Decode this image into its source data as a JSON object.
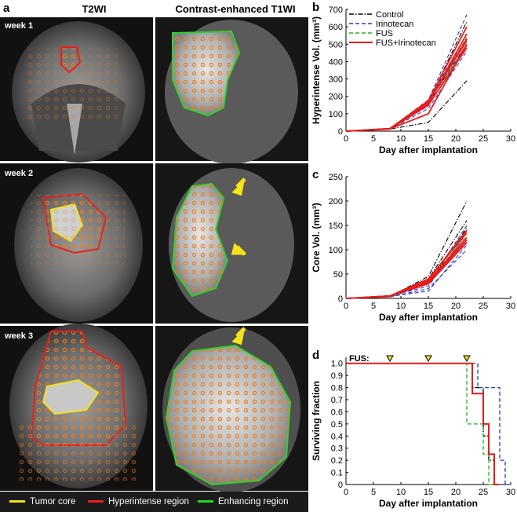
{
  "panel_a": {
    "letter": "a",
    "columns": [
      "T2WI",
      "Contrast-enhanced T1WI"
    ],
    "rows": [
      {
        "label": "week 1"
      },
      {
        "label": "week 2"
      },
      {
        "label": "week 3"
      }
    ],
    "legend": [
      {
        "label": "Tumor core",
        "color": "#f4e21a"
      },
      {
        "label": "Hyperintense region",
        "color": "#e8201c"
      },
      {
        "label": "Enhancing region",
        "color": "#2ad62a"
      }
    ],
    "colors": {
      "target_dots": "#f07a1a",
      "arrow": "#f7e21c"
    }
  },
  "chart_data": [
    {
      "letter": "b",
      "type": "line",
      "xlabel": "Day after implantation",
      "ylabel": "Hyperintense Vol. (mm³)",
      "xlim": [
        0,
        30
      ],
      "ylim": [
        0,
        700
      ],
      "xticks": [
        0,
        5,
        10,
        15,
        20,
        25,
        30
      ],
      "yticks": [
        0,
        100,
        200,
        300,
        400,
        500,
        600,
        700
      ],
      "legend_position": "top-left",
      "x": [
        0,
        8,
        15,
        22
      ],
      "series": [
        {
          "name": "Control",
          "color": "#000000",
          "dash": "dashdot",
          "lines": [
            [
              0,
              12,
              50,
              290
            ],
            [
              0,
              15,
              170,
              630
            ],
            [
              0,
              14,
              150,
              560
            ],
            [
              0,
              13,
              165,
              500
            ]
          ]
        },
        {
          "name": "Irinotecan",
          "color": "#2b36c6",
          "dash": "dashed",
          "lines": [
            [
              0,
              15,
              180,
              670
            ],
            [
              0,
              12,
              130,
              460
            ],
            [
              0,
              13,
              145,
              500
            ],
            [
              0,
              16,
              175,
              560
            ]
          ]
        },
        {
          "name": "FUS",
          "color": "#1fb51f",
          "dash": "dashed",
          "lines": [
            [
              0,
              14,
              175,
              600
            ],
            [
              0,
              13,
              160,
              540
            ],
            [
              0,
              15,
              170,
              490
            ]
          ]
        },
        {
          "name": "FUS+Irinotecan",
          "color": "#e81b1b",
          "dash": "solid",
          "lines": [
            [
              0,
              14,
              175,
              600
            ],
            [
              0,
              13,
              160,
              560
            ],
            [
              0,
              15,
              170,
              520
            ],
            [
              0,
              12,
              150,
              480
            ],
            [
              0,
              14,
              165,
              530
            ],
            [
              0,
              13,
              100,
              500
            ]
          ]
        }
      ]
    },
    {
      "letter": "c",
      "type": "line",
      "xlabel": "Day after implantation",
      "ylabel": "Core Vol. (mm³)",
      "xlim": [
        0,
        30
      ],
      "ylim": [
        0,
        250
      ],
      "xticks": [
        0,
        5,
        10,
        15,
        20,
        25,
        30
      ],
      "yticks": [
        0,
        50,
        100,
        150,
        200,
        250
      ],
      "x": [
        0,
        8,
        15,
        22
      ],
      "series": [
        {
          "name": "Control",
          "color": "#000000",
          "dash": "dashdot",
          "lines": [
            [
              0,
              4,
              45,
              200
            ],
            [
              0,
              5,
              40,
              160
            ],
            [
              0,
              3,
              30,
              145
            ],
            [
              0,
              4,
              35,
              120
            ]
          ]
        },
        {
          "name": "Irinotecan",
          "color": "#2b36c6",
          "dash": "dashed",
          "lines": [
            [
              0,
              4,
              30,
              150
            ],
            [
              0,
              3,
              20,
              100
            ],
            [
              0,
              4,
              15,
              110
            ],
            [
              0,
              5,
              25,
              135
            ]
          ]
        },
        {
          "name": "FUS",
          "color": "#1fb51f",
          "dash": "dashed",
          "lines": [
            [
              0,
              5,
              35,
              130
            ],
            [
              0,
              4,
              30,
              120
            ],
            [
              0,
              6,
              40,
              140
            ]
          ]
        },
        {
          "name": "FUS+Irinotecan",
          "color": "#e81b1b",
          "dash": "solid",
          "lines": [
            [
              0,
              5,
              40,
              135
            ],
            [
              0,
              4,
              35,
              125
            ],
            [
              0,
              5,
              30,
              115
            ],
            [
              0,
              4,
              38,
              140
            ],
            [
              0,
              5,
              33,
              120
            ]
          ]
        }
      ]
    },
    {
      "letter": "d",
      "type": "line",
      "step": true,
      "xlabel": "Day after implantation",
      "ylabel": "Surviving fraction",
      "xlim": [
        0,
        30
      ],
      "ylim": [
        0,
        1.05
      ],
      "xticks": [
        0,
        5,
        10,
        15,
        20,
        25,
        30
      ],
      "yticks": [
        "0",
        "0.1",
        "0.2",
        "0.3",
        "0.4",
        "0.5",
        "0.6",
        "0.7",
        "0.8",
        "0.9",
        "1.0"
      ],
      "fus_label": "FUS:",
      "fus_days": [
        8,
        15,
        22
      ],
      "series": [
        {
          "name": "Control",
          "color": "#000000",
          "dash": "dashdot",
          "steps": [
            [
              0,
              1.0
            ],
            [
              23,
              0.8
            ],
            [
              25,
              0.4
            ],
            [
              26,
              0.2
            ],
            [
              27,
              0.0
            ]
          ]
        },
        {
          "name": "Irinotecan",
          "color": "#2b36c6",
          "dash": "dashed",
          "steps": [
            [
              0,
              1.0
            ],
            [
              24,
              0.8
            ],
            [
              28,
              0.2
            ],
            [
              29,
              0.0
            ]
          ]
        },
        {
          "name": "FUS",
          "color": "#1fb51f",
          "dash": "dashed",
          "steps": [
            [
              0,
              1.0
            ],
            [
              22,
              0.5
            ],
            [
              25,
              0.25
            ],
            [
              26,
              0.0
            ]
          ]
        },
        {
          "name": "FUS+Irinotecan",
          "color": "#e81b1b",
          "dash": "solid",
          "steps": [
            [
              0,
              1.0
            ],
            [
              23,
              0.75
            ],
            [
              25,
              0.5
            ],
            [
              26,
              0.25
            ],
            [
              27,
              0.0
            ]
          ]
        }
      ]
    }
  ]
}
